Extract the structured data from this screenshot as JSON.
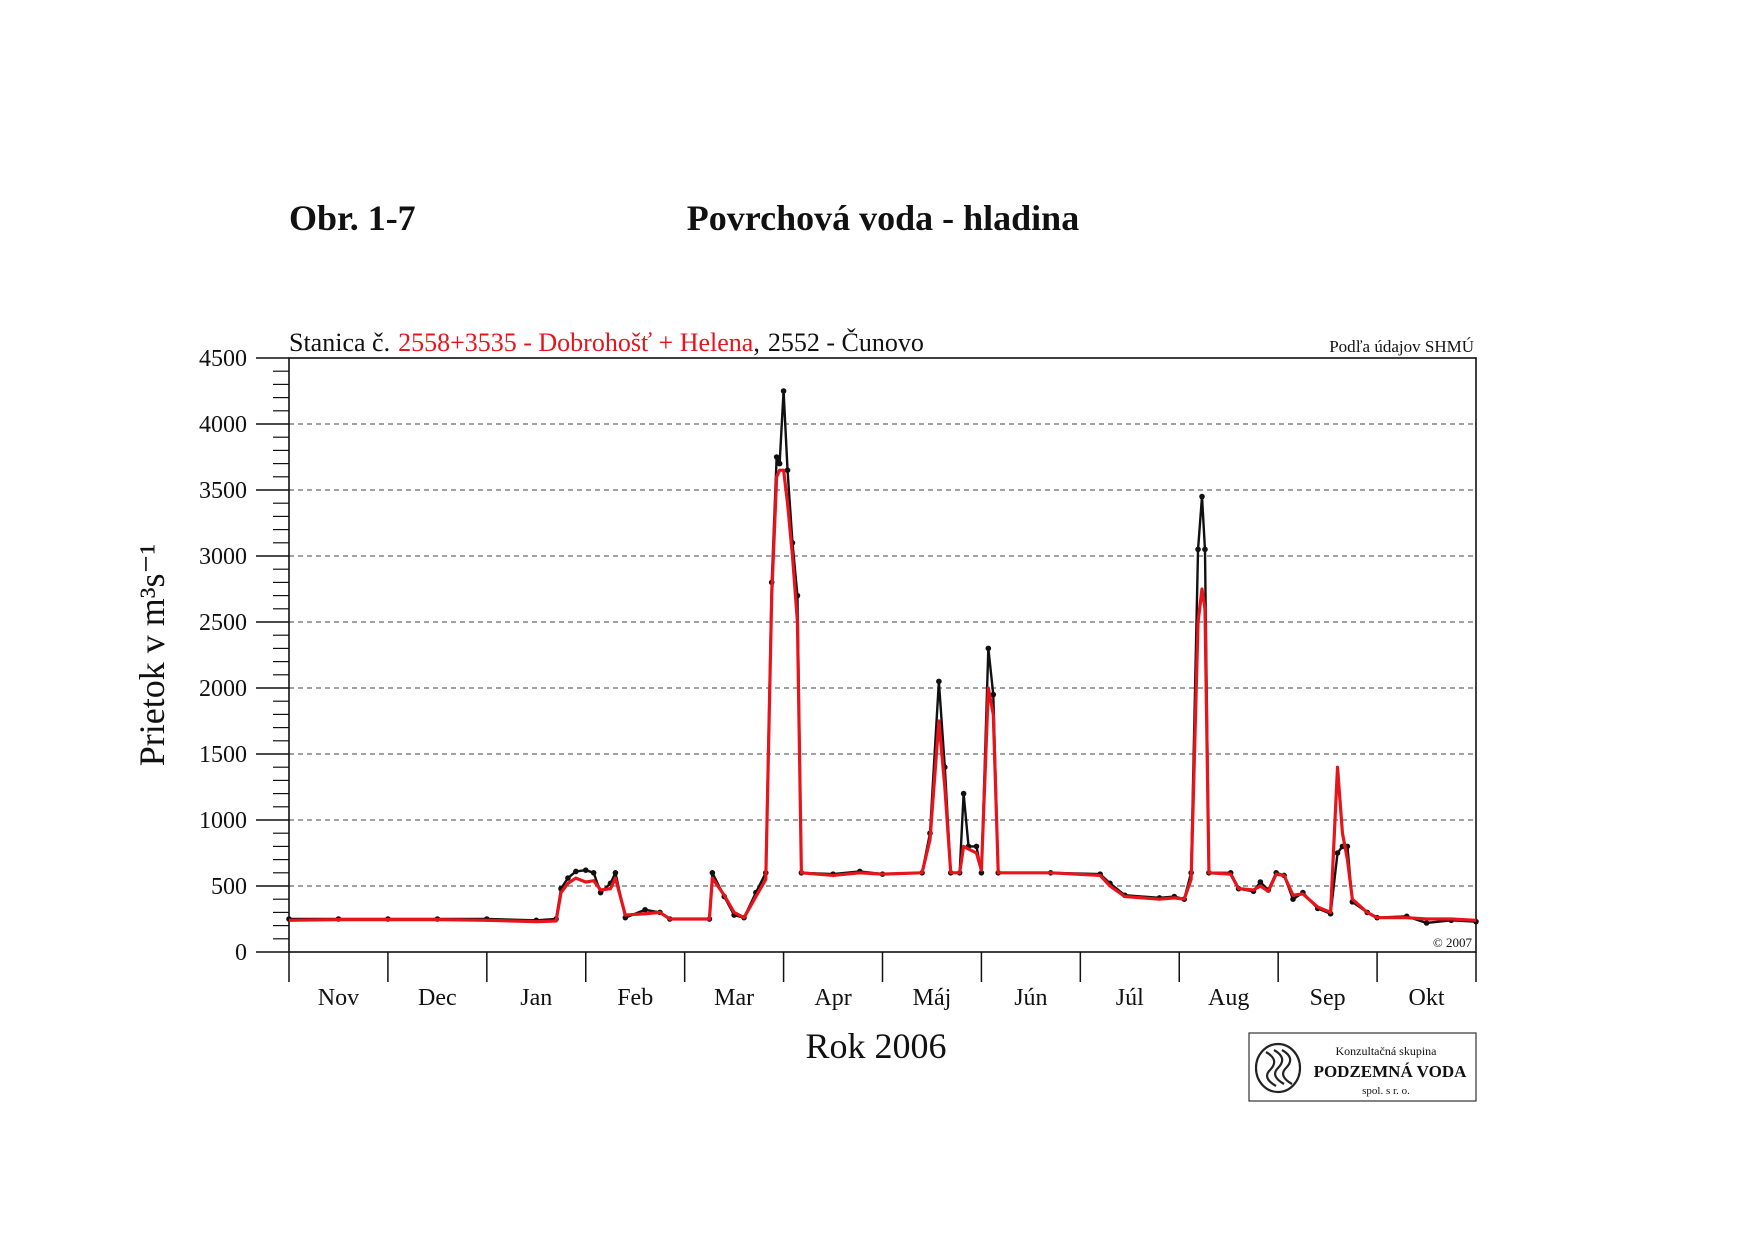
{
  "chart_data": {
    "type": "line",
    "figure_label": "Obr. 1-7",
    "title": "Povrchová voda - hladina",
    "subtitle_prefix": "Stanica č.",
    "legend_separator": ",",
    "source_note": "Podľa údajov SHMÚ",
    "copyright": "© 2007",
    "ylabel": "Prietok v m³s⁻¹",
    "xlabel": "Rok 2006",
    "categories": [
      "Nov",
      "Dec",
      "Jan",
      "Feb",
      "Mar",
      "Apr",
      "Máj",
      "Jún",
      "Júl",
      "Aug",
      "Sep",
      "Okt"
    ],
    "xlim": [
      0,
      12
    ],
    "xticks": [
      0,
      1,
      2,
      3,
      4,
      5,
      6,
      7,
      8,
      9,
      10,
      11,
      12
    ],
    "ylim": [
      0,
      4500
    ],
    "yticks": [
      0,
      500,
      1000,
      1500,
      2000,
      2500,
      3000,
      3500,
      4000,
      4500
    ],
    "grid": true,
    "x": [
      0,
      0.5,
      1.0,
      1.5,
      2.0,
      2.5,
      2.7,
      2.75,
      2.82,
      2.9,
      3.0,
      3.08,
      3.15,
      3.25,
      3.3,
      3.4,
      3.6,
      3.75,
      3.85,
      4.25,
      4.28,
      4.4,
      4.5,
      4.6,
      4.72,
      4.82,
      4.88,
      4.93,
      4.96,
      5.0,
      5.04,
      5.09,
      5.14,
      5.18,
      5.5,
      5.77,
      6.0,
      6.4,
      6.48,
      6.57,
      6.63,
      6.69,
      6.78,
      6.82,
      6.87,
      6.95,
      7.0,
      7.07,
      7.12,
      7.17,
      7.7,
      8.2,
      8.3,
      8.45,
      8.8,
      8.95,
      9.05,
      9.12,
      9.19,
      9.23,
      9.26,
      9.3,
      9.52,
      9.6,
      9.75,
      9.82,
      9.9,
      9.98,
      10.06,
      10.15,
      10.25,
      10.4,
      10.53,
      10.6,
      10.65,
      10.7,
      10.75,
      10.9,
      11.0,
      11.3,
      11.5,
      11.75,
      12.0
    ],
    "series": [
      {
        "name": "2558+3535 - Dobrohošť + Helena",
        "color": "#e8141c",
        "values": [
          240,
          245,
          245,
          245,
          240,
          230,
          235,
          450,
          520,
          560,
          530,
          540,
          470,
          480,
          560,
          280,
          290,
          300,
          250,
          250,
          560,
          430,
          300,
          260,
          420,
          550,
          2700,
          3600,
          3650,
          3650,
          3400,
          3000,
          2500,
          600,
          580,
          600,
          590,
          600,
          850,
          1750,
          1250,
          600,
          600,
          800,
          780,
          750,
          620,
          2000,
          1800,
          600,
          600,
          580,
          500,
          420,
          400,
          410,
          400,
          550,
          2500,
          2750,
          2600,
          600,
          590,
          480,
          470,
          500,
          460,
          590,
          580,
          430,
          440,
          340,
          300,
          1400,
          900,
          700,
          400,
          300,
          260,
          260,
          250,
          250,
          240
        ]
      },
      {
        "name": "2552 - Čunovo",
        "color": "#111111",
        "values": [
          250,
          250,
          250,
          250,
          250,
          240,
          250,
          480,
          560,
          610,
          620,
          600,
          450,
          520,
          600,
          260,
          320,
          300,
          250,
          250,
          600,
          420,
          280,
          260,
          450,
          600,
          2800,
          3750,
          3700,
          4250,
          3650,
          3100,
          2700,
          600,
          590,
          610,
          590,
          600,
          900,
          2050,
          1400,
          600,
          600,
          1200,
          800,
          800,
          600,
          2300,
          1950,
          600,
          600,
          590,
          520,
          430,
          410,
          420,
          400,
          600,
          3050,
          3450,
          3050,
          600,
          600,
          480,
          460,
          530,
          470,
          600,
          580,
          400,
          450,
          330,
          290,
          750,
          800,
          800,
          380,
          300,
          260,
          270,
          220,
          240,
          230
        ]
      }
    ]
  },
  "logo": {
    "line1": "Konzultačná skupina",
    "line2": "PODZEMNÁ VODA",
    "line3": "spol. s r. o."
  }
}
